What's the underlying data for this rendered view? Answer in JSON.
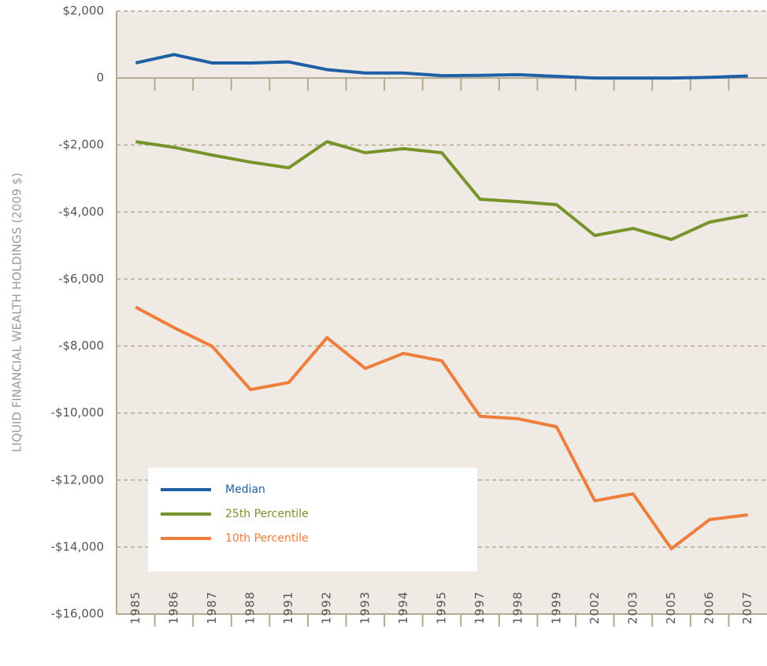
{
  "chart_data": {
    "type": "line",
    "y_label": "LIQUID FINANCIAL WEALTH HOLDINGS (2009 $)",
    "categories": [
      "1985",
      "1986",
      "1987",
      "1988",
      "1991",
      "1992",
      "1993",
      "1994",
      "1995",
      "1997",
      "1998",
      "1999",
      "2002",
      "2003",
      "2005",
      "2006",
      "2007"
    ],
    "series": [
      {
        "name": "Median",
        "color": "#1f5fa6",
        "values": [
          450,
          700,
          450,
          450,
          480,
          250,
          150,
          150,
          70,
          80,
          100,
          50,
          0,
          0,
          0,
          20,
          60
        ]
      },
      {
        "name": "25th Percentile",
        "color": "#76942a",
        "values": [
          -1900,
          -2070,
          -2300,
          -2510,
          -2680,
          -1900,
          -2230,
          -2110,
          -2230,
          -3620,
          -3690,
          -3780,
          -4700,
          -4490,
          -4820,
          -4300,
          -4090
        ]
      },
      {
        "name": "10th Percentile",
        "color": "#ef7d3c",
        "values": [
          -6840,
          -7450,
          -8010,
          -9300,
          -9090,
          -7750,
          -8670,
          -8220,
          -8440,
          -10100,
          -10170,
          -10410,
          -12620,
          -12410,
          -14050,
          -13180,
          -13040
        ]
      }
    ],
    "ylim": [
      -16000,
      2000
    ],
    "yticks": [
      {
        "value": -16000,
        "label": "-$16,000"
      },
      {
        "value": -14000,
        "label": "-$14,000"
      },
      {
        "value": -12000,
        "label": "-$12,000"
      },
      {
        "value": -10000,
        "label": "-$10,000"
      },
      {
        "value": -8000,
        "label": "-$8,000"
      },
      {
        "value": -6000,
        "label": "-$6,000"
      },
      {
        "value": -4000,
        "label": "-$4,000"
      },
      {
        "value": -2000,
        "label": "-$2,000"
      },
      0,
      {
        "value": 2000,
        "label": "$2,000"
      }
    ],
    "grid": true,
    "legend_position": "lower-left"
  }
}
